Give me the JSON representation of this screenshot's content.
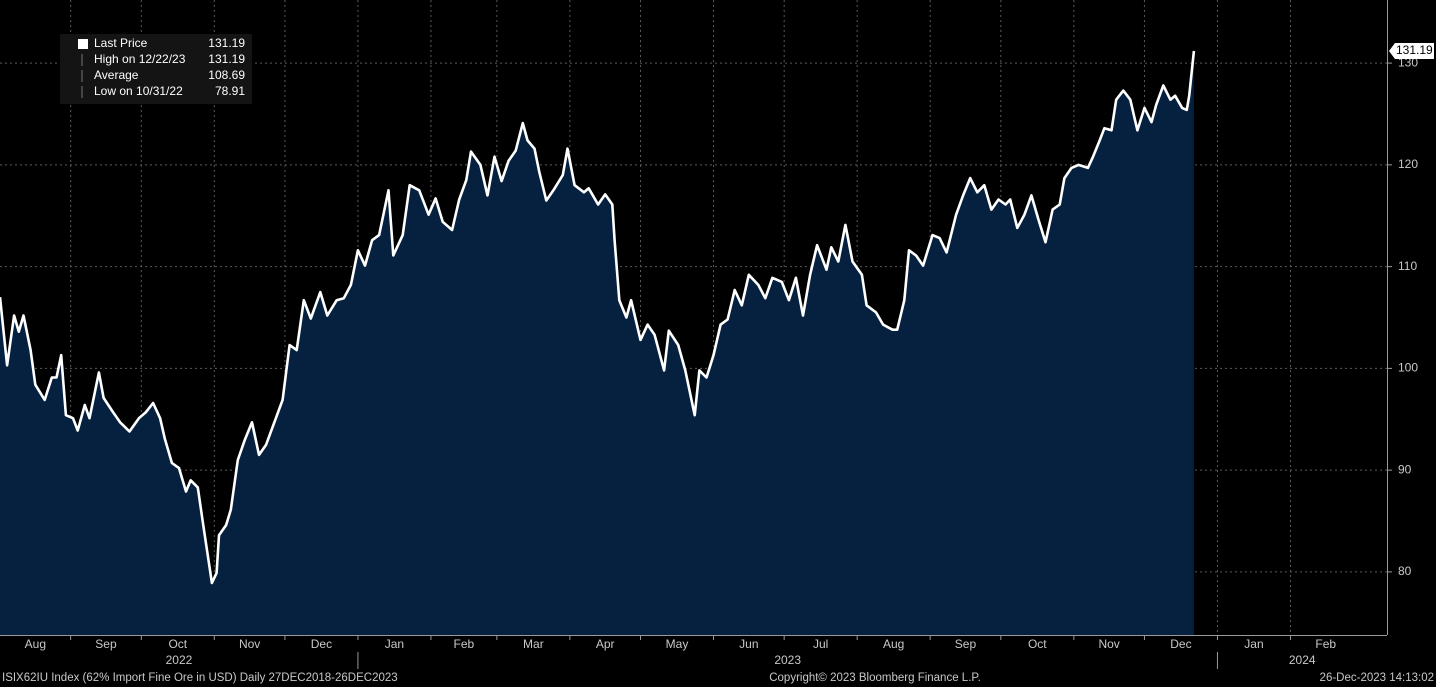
{
  "chart_data": {
    "type": "line",
    "series": [
      {
        "name": "Last Price",
        "color": "#ffffff",
        "fill": "#06203f",
        "values": [
          107.0,
          100.3,
          105.2,
          103.6,
          105.2,
          101.8,
          98.4,
          96.9,
          99.1,
          99.1,
          101.3,
          95.4,
          95.1,
          93.9,
          96.4,
          95.1,
          99.6,
          97.1,
          95.7,
          94.7,
          93.8,
          95.1,
          95.7,
          96.6,
          95.1,
          93.1,
          90.7,
          90.2,
          87.9,
          89.0,
          88.3,
          85.1,
          78.91,
          79.9,
          83.6,
          84.6,
          86.1,
          91.0,
          93.0,
          94.7,
          91.5,
          92.5,
          94.4,
          96.9,
          102.3,
          101.8,
          106.7,
          104.9,
          107.5,
          105.2,
          106.7,
          106.9,
          108.2,
          111.6,
          110.1,
          112.6,
          113.1,
          117.5,
          111.1,
          113.1,
          118.0,
          117.5,
          115.1,
          116.7,
          114.4,
          113.6,
          116.6,
          118.5,
          121.3,
          120.0,
          117.0,
          120.8,
          118.4,
          120.4,
          121.4,
          124.1,
          122.4,
          121.6,
          119.3,
          116.5,
          117.5,
          119.0,
          121.6,
          118.0,
          117.3,
          117.7,
          116.1,
          117.1,
          116.1,
          112.6,
          106.7,
          105.0,
          106.7,
          102.8,
          104.3,
          103.3,
          99.8,
          103.7,
          102.3,
          99.8,
          95.4,
          99.8,
          99.1,
          101.3,
          104.3,
          104.8,
          107.7,
          106.2,
          109.2,
          108.2,
          106.9,
          108.9,
          108.5,
          106.7,
          108.9,
          105.2,
          109.2,
          112.1,
          109.7,
          111.9,
          110.5,
          114.1,
          110.5,
          109.2,
          106.2,
          105.5,
          104.3,
          103.8,
          103.8,
          106.7,
          111.6,
          111.1,
          110.1,
          113.1,
          112.8,
          111.4,
          115.1,
          117.0,
          118.7,
          117.3,
          118.0,
          115.6,
          116.6,
          116.1,
          116.6,
          113.8,
          115.1,
          117.0,
          114.6,
          112.4,
          115.6,
          116.1,
          118.7,
          119.7,
          120.0,
          119.7,
          120.7,
          122.4,
          123.6,
          123.4,
          126.4,
          127.3,
          126.4,
          123.4,
          125.6,
          124.2,
          125.9,
          127.8,
          126.4,
          126.8,
          125.6,
          125.4,
          126.8,
          131.19
        ]
      }
    ],
    "x": [
      "2022-08-02",
      "2022-08-05",
      "2022-08-08",
      "2022-08-10",
      "2022-08-12",
      "2022-08-15",
      "2022-08-17",
      "2022-08-21",
      "2022-08-24",
      "2022-08-26",
      "2022-08-28",
      "2022-08-30",
      "2022-09-02",
      "2022-09-04",
      "2022-09-07",
      "2022-09-09",
      "2022-09-13",
      "2022-09-15",
      "2022-09-19",
      "2022-09-22",
      "2022-09-26",
      "2022-09-30",
      "2022-10-03",
      "2022-10-06",
      "2022-10-09",
      "2022-10-11",
      "2022-10-14",
      "2022-10-17",
      "2022-10-20",
      "2022-10-22",
      "2022-10-25",
      "2022-10-27",
      "2022-10-31",
      "2022-11-02",
      "2022-11-03",
      "2022-11-06",
      "2022-11-08",
      "2022-11-11",
      "2022-11-14",
      "2022-11-17",
      "2022-11-20",
      "2022-11-23",
      "2022-11-26",
      "2022-11-30",
      "2022-12-03",
      "2022-12-06",
      "2022-12-09",
      "2022-12-12",
      "2022-12-16",
      "2022-12-19",
      "2022-12-23",
      "2022-12-26",
      "2022-12-29",
      "2023-01-01",
      "2023-01-04",
      "2023-01-07",
      "2023-01-10",
      "2023-01-14",
      "2023-01-16",
      "2023-01-20",
      "2023-01-23",
      "2023-01-27",
      "2023-01-31",
      "2023-02-03",
      "2023-02-06",
      "2023-02-10",
      "2023-02-13",
      "2023-02-16",
      "2023-02-18",
      "2023-02-22",
      "2023-02-25",
      "2023-02-28",
      "2023-03-03",
      "2023-03-06",
      "2023-03-09",
      "2023-03-12",
      "2023-03-14",
      "2023-03-17",
      "2023-03-19",
      "2023-03-22",
      "2023-03-25",
      "2023-03-29",
      "2023-03-31",
      "2023-04-03",
      "2023-04-07",
      "2023-04-09",
      "2023-04-13",
      "2023-04-16",
      "2023-04-19",
      "2023-04-20",
      "2023-04-22",
      "2023-04-25",
      "2023-04-27",
      "2023-05-01",
      "2023-05-04",
      "2023-05-07",
      "2023-05-11",
      "2023-05-13",
      "2023-05-17",
      "2023-05-20",
      "2023-05-24",
      "2023-05-26",
      "2023-05-29",
      "2023-06-01",
      "2023-06-04",
      "2023-06-07",
      "2023-06-10",
      "2023-06-13",
      "2023-06-16",
      "2023-06-20",
      "2023-06-23",
      "2023-06-26",
      "2023-06-30",
      "2023-07-03",
      "2023-07-06",
      "2023-07-09",
      "2023-07-12",
      "2023-07-15",
      "2023-07-19",
      "2023-07-21",
      "2023-07-24",
      "2023-07-27",
      "2023-07-30",
      "2023-08-03",
      "2023-08-05",
      "2023-08-09",
      "2023-08-12",
      "2023-08-16",
      "2023-08-18",
      "2023-08-21",
      "2023-08-23",
      "2023-08-26",
      "2023-08-29",
      "2023-09-02",
      "2023-09-05",
      "2023-09-08",
      "2023-09-12",
      "2023-09-15",
      "2023-09-18",
      "2023-09-21",
      "2023-09-24",
      "2023-09-27",
      "2023-09-30",
      "2023-10-03",
      "2023-10-05",
      "2023-10-08",
      "2023-10-11",
      "2023-10-14",
      "2023-10-17",
      "2023-10-20",
      "2023-10-23",
      "2023-10-26",
      "2023-10-28",
      "2023-10-31",
      "2023-11-03",
      "2023-11-07",
      "2023-11-09",
      "2023-11-12",
      "2023-11-14",
      "2023-11-17",
      "2023-11-19",
      "2023-11-22",
      "2023-11-25",
      "2023-11-28",
      "2023-12-01",
      "2023-12-04",
      "2023-12-06",
      "2023-12-09",
      "2023-12-12",
      "2023-12-14",
      "2023-12-17",
      "2023-12-19",
      "2023-12-20",
      "2023-12-22"
    ],
    "xlim": [
      "2022-08-02",
      "2024-03-13"
    ],
    "xticks": [
      {
        "value": "2022-08-01",
        "label": "Aug"
      },
      {
        "value": "2022-09-01",
        "label": "Sep"
      },
      {
        "value": "2022-10-01",
        "label": "Oct"
      },
      {
        "value": "2022-11-01",
        "label": "Nov"
      },
      {
        "value": "2022-12-01",
        "label": "Dec"
      },
      {
        "value": "2023-01-01",
        "label": "Jan"
      },
      {
        "value": "2023-02-01",
        "label": "Feb"
      },
      {
        "value": "2023-03-01",
        "label": "Mar"
      },
      {
        "value": "2023-04-01",
        "label": "Apr"
      },
      {
        "value": "2023-05-01",
        "label": "May"
      },
      {
        "value": "2023-06-01",
        "label": "Jun"
      },
      {
        "value": "2023-07-01",
        "label": "Jul"
      },
      {
        "value": "2023-08-01",
        "label": "Aug"
      },
      {
        "value": "2023-09-01",
        "label": "Sep"
      },
      {
        "value": "2023-10-01",
        "label": "Oct"
      },
      {
        "value": "2023-11-01",
        "label": "Nov"
      },
      {
        "value": "2023-12-01",
        "label": "Dec"
      },
      {
        "value": "2024-01-01",
        "label": "Jan"
      },
      {
        "value": "2024-02-01",
        "label": "Feb"
      }
    ],
    "year_labels": [
      "2022",
      "2023",
      "2024"
    ],
    "ylim": [
      73.8,
      136.2
    ],
    "yticks": [
      80,
      90,
      100,
      110,
      120,
      130
    ],
    "grid": true,
    "stats": [
      {
        "label": "High on 12/22/23",
        "value": 131.19
      },
      {
        "label": "Average",
        "value": 108.69
      },
      {
        "label": "Low on 10/31/22",
        "value": 78.91
      }
    ],
    "footer_left": "ISIX62IU Index (62% Import Fine Ore in USD)  Daily 27DEC2018-26DEC2023",
    "footer_center": "Copyright© 2023 Bloomberg Finance L.P.",
    "footer_right": "26-Dec-2023 14:13:02"
  }
}
